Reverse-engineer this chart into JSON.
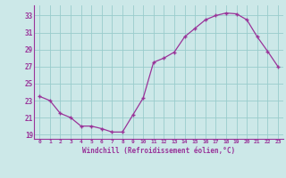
{
  "x": [
    0,
    1,
    2,
    3,
    4,
    5,
    6,
    7,
    8,
    9,
    10,
    11,
    12,
    13,
    14,
    15,
    16,
    17,
    18,
    19,
    20,
    21,
    22,
    23
  ],
  "y": [
    23.5,
    23.0,
    21.5,
    21.0,
    20.0,
    20.0,
    19.7,
    19.3,
    19.3,
    21.3,
    23.3,
    27.5,
    28.0,
    28.7,
    30.5,
    31.5,
    32.5,
    33.0,
    33.3,
    33.2,
    32.5,
    30.5,
    28.8,
    27.0
  ],
  "xlim": [
    -0.5,
    23.5
  ],
  "ylim": [
    18.5,
    34.2
  ],
  "yticks": [
    19,
    21,
    23,
    25,
    27,
    29,
    31,
    33
  ],
  "xticks": [
    0,
    1,
    2,
    3,
    4,
    5,
    6,
    7,
    8,
    9,
    10,
    11,
    12,
    13,
    14,
    15,
    16,
    17,
    18,
    19,
    20,
    21,
    22,
    23
  ],
  "xlabel": "Windchill (Refroidissement éolien,°C)",
  "line_color": "#993399",
  "marker_color": "#993399",
  "bg_color": "#cce8e8",
  "grid_color": "#99cccc",
  "axis_color": "#993399",
  "tick_color": "#993399",
  "label_color": "#993399"
}
